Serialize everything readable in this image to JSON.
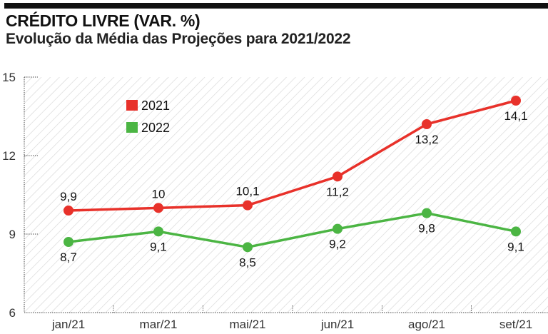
{
  "chart_data": {
    "type": "line",
    "title": "CRÉDITO LIVRE (VAR. %)",
    "subtitle": "Evolução da Média das Projeções para 2021/2022",
    "xlabel": "",
    "ylabel": "",
    "categories": [
      "jan/21",
      "mar/21",
      "mai/21",
      "jun/21",
      "ago/21",
      "set/21"
    ],
    "ylim": [
      6,
      15
    ],
    "yticks": [
      6,
      9,
      12,
      15
    ],
    "ytick_labels": [
      "6",
      "9",
      "12",
      "15"
    ],
    "grid": false,
    "legend_position": "top-left",
    "series": [
      {
        "name": "2021",
        "color": "#e8312a",
        "values": [
          9.9,
          10,
          10.1,
          11.2,
          13.2,
          14.1
        ],
        "labels": [
          "9,9",
          "10",
          "10,1",
          "11,2",
          "13,2",
          "14,1"
        ],
        "label_pos": [
          "above",
          "above",
          "above",
          "below",
          "below",
          "below"
        ]
      },
      {
        "name": "2022",
        "color": "#4bb543",
        "values": [
          8.7,
          9.1,
          8.5,
          9.2,
          9.8,
          9.1
        ],
        "labels": [
          "8,7",
          "9,1",
          "8,5",
          "9,2",
          "9,8",
          "9,1"
        ],
        "label_pos": [
          "below",
          "below",
          "below",
          "below",
          "below",
          "below"
        ]
      }
    ]
  }
}
